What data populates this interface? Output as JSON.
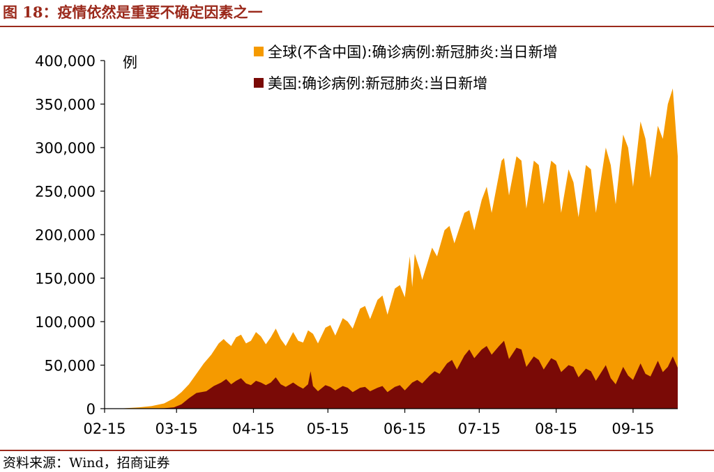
{
  "header": {
    "title": "图 18：疫情依然是重要不确定因素之一"
  },
  "footer": {
    "source": "资料来源：Wind，招商证券"
  },
  "chart_data": {
    "type": "area",
    "title": "图 18：疫情依然是重要不确定因素之一",
    "ylabel": "例",
    "xlabel": "",
    "ylim": [
      0,
      400000
    ],
    "yticks": [
      0,
      50000,
      100000,
      150000,
      200000,
      250000,
      300000,
      350000,
      400000
    ],
    "ytick_labels": [
      "0",
      "50,000",
      "100,000",
      "150,000",
      "200,000",
      "250,000",
      "300,000",
      "350,000",
      "400,000"
    ],
    "x_start": "2020-02-15",
    "x_end": "2020-10-03",
    "xticks": [
      "2020-02-15",
      "2020-03-15",
      "2020-04-15",
      "2020-05-15",
      "2020-06-15",
      "2020-07-15",
      "2020-08-15",
      "2020-09-15"
    ],
    "xtick_labels": [
      "02-15",
      "03-15",
      "04-15",
      "05-15",
      "06-15",
      "07-15",
      "08-15",
      "09-15"
    ],
    "legend_position": "top-center",
    "grid": false,
    "colors": {
      "global": "#f59a00",
      "us": "#7a0a06"
    },
    "series": [
      {
        "name": "全球(不含中国):确诊病例:新冠肺炎:当日新增",
        "key": "global",
        "points": [
          [
            "2020-02-15",
            0
          ],
          [
            "2020-02-22",
            300
          ],
          [
            "2020-02-29",
            1500
          ],
          [
            "2020-03-05",
            3000
          ],
          [
            "2020-03-10",
            6000
          ],
          [
            "2020-03-14",
            12000
          ],
          [
            "2020-03-17",
            19000
          ],
          [
            "2020-03-20",
            28000
          ],
          [
            "2020-03-23",
            40000
          ],
          [
            "2020-03-26",
            52000
          ],
          [
            "2020-03-29",
            62000
          ],
          [
            "2020-04-01",
            75000
          ],
          [
            "2020-04-03",
            80000
          ],
          [
            "2020-04-04",
            77000
          ],
          [
            "2020-04-06",
            72000
          ],
          [
            "2020-04-08",
            82000
          ],
          [
            "2020-04-10",
            85000
          ],
          [
            "2020-04-12",
            75000
          ],
          [
            "2020-04-14",
            78000
          ],
          [
            "2020-04-16",
            88000
          ],
          [
            "2020-04-18",
            83000
          ],
          [
            "2020-04-20",
            74000
          ],
          [
            "2020-04-22",
            82000
          ],
          [
            "2020-04-24",
            92000
          ],
          [
            "2020-04-26",
            80000
          ],
          [
            "2020-04-28",
            72000
          ],
          [
            "2020-05-01",
            88000
          ],
          [
            "2020-05-03",
            78000
          ],
          [
            "2020-05-05",
            76000
          ],
          [
            "2020-05-07",
            90000
          ],
          [
            "2020-05-09",
            86000
          ],
          [
            "2020-05-11",
            75000
          ],
          [
            "2020-05-14",
            93000
          ],
          [
            "2020-05-16",
            96000
          ],
          [
            "2020-05-18",
            84000
          ],
          [
            "2020-05-21",
            104000
          ],
          [
            "2020-05-23",
            100000
          ],
          [
            "2020-05-25",
            92000
          ],
          [
            "2020-05-28",
            115000
          ],
          [
            "2020-05-30",
            118000
          ],
          [
            "2020-06-01",
            103000
          ],
          [
            "2020-06-04",
            125000
          ],
          [
            "2020-06-06",
            130000
          ],
          [
            "2020-06-08",
            108000
          ],
          [
            "2020-06-11",
            138000
          ],
          [
            "2020-06-13",
            142000
          ],
          [
            "2020-06-15",
            128000
          ],
          [
            "2020-06-17",
            175000
          ],
          [
            "2020-06-18",
            140000
          ],
          [
            "2020-06-19",
            178000
          ],
          [
            "2020-06-21",
            160000
          ],
          [
            "2020-06-22",
            148000
          ],
          [
            "2020-06-26",
            185000
          ],
          [
            "2020-06-28",
            175000
          ],
          [
            "2020-07-01",
            205000
          ],
          [
            "2020-07-03",
            210000
          ],
          [
            "2020-07-05",
            190000
          ],
          [
            "2020-07-09",
            225000
          ],
          [
            "2020-07-11",
            228000
          ],
          [
            "2020-07-13",
            205000
          ],
          [
            "2020-07-16",
            240000
          ],
          [
            "2020-07-18",
            255000
          ],
          [
            "2020-07-20",
            225000
          ],
          [
            "2020-07-24",
            285000
          ],
          [
            "2020-07-25",
            288000
          ],
          [
            "2020-07-27",
            245000
          ],
          [
            "2020-07-30",
            290000
          ],
          [
            "2020-08-01",
            285000
          ],
          [
            "2020-08-03",
            230000
          ],
          [
            "2020-08-06",
            285000
          ],
          [
            "2020-08-08",
            280000
          ],
          [
            "2020-08-10",
            235000
          ],
          [
            "2020-08-13",
            285000
          ],
          [
            "2020-08-15",
            280000
          ],
          [
            "2020-08-17",
            225000
          ],
          [
            "2020-08-20",
            275000
          ],
          [
            "2020-08-22",
            260000
          ],
          [
            "2020-08-24",
            220000
          ],
          [
            "2020-08-27",
            280000
          ],
          [
            "2020-08-29",
            275000
          ],
          [
            "2020-08-31",
            225000
          ],
          [
            "2020-09-04",
            300000
          ],
          [
            "2020-09-06",
            280000
          ],
          [
            "2020-09-08",
            235000
          ],
          [
            "2020-09-11",
            315000
          ],
          [
            "2020-09-13",
            300000
          ],
          [
            "2020-09-15",
            255000
          ],
          [
            "2020-09-18",
            330000
          ],
          [
            "2020-09-20",
            310000
          ],
          [
            "2020-09-22",
            265000
          ],
          [
            "2020-09-25",
            325000
          ],
          [
            "2020-09-27",
            310000
          ],
          [
            "2020-09-29",
            350000
          ],
          [
            "2020-10-01",
            368000
          ],
          [
            "2020-10-03",
            290000
          ]
        ]
      },
      {
        "name": "美国:确诊病例:新冠肺炎:当日新增",
        "key": "us",
        "points": [
          [
            "2020-02-15",
            0
          ],
          [
            "2020-03-01",
            100
          ],
          [
            "2020-03-10",
            500
          ],
          [
            "2020-03-14",
            1500
          ],
          [
            "2020-03-17",
            5000
          ],
          [
            "2020-03-20",
            12000
          ],
          [
            "2020-03-23",
            18000
          ],
          [
            "2020-03-27",
            20000
          ],
          [
            "2020-03-30",
            26000
          ],
          [
            "2020-04-02",
            30000
          ],
          [
            "2020-04-04",
            34000
          ],
          [
            "2020-04-06",
            28000
          ],
          [
            "2020-04-08",
            32000
          ],
          [
            "2020-04-10",
            35000
          ],
          [
            "2020-04-12",
            29000
          ],
          [
            "2020-04-14",
            27000
          ],
          [
            "2020-04-16",
            32000
          ],
          [
            "2020-04-18",
            30000
          ],
          [
            "2020-04-20",
            27000
          ],
          [
            "2020-04-22",
            30000
          ],
          [
            "2020-04-24",
            36000
          ],
          [
            "2020-04-26",
            28000
          ],
          [
            "2020-04-28",
            25000
          ],
          [
            "2020-05-01",
            30000
          ],
          [
            "2020-05-03",
            26000
          ],
          [
            "2020-05-05",
            23000
          ],
          [
            "2020-05-07",
            28000
          ],
          [
            "2020-05-08",
            43000
          ],
          [
            "2020-05-09",
            26000
          ],
          [
            "2020-05-11",
            20000
          ],
          [
            "2020-05-14",
            27000
          ],
          [
            "2020-05-16",
            25000
          ],
          [
            "2020-05-18",
            21000
          ],
          [
            "2020-05-21",
            26000
          ],
          [
            "2020-05-23",
            24000
          ],
          [
            "2020-05-25",
            19000
          ],
          [
            "2020-05-28",
            24000
          ],
          [
            "2020-05-30",
            25000
          ],
          [
            "2020-06-01",
            20000
          ],
          [
            "2020-06-04",
            24000
          ],
          [
            "2020-06-06",
            26000
          ],
          [
            "2020-06-08",
            19000
          ],
          [
            "2020-06-11",
            25000
          ],
          [
            "2020-06-13",
            27000
          ],
          [
            "2020-06-15",
            21000
          ],
          [
            "2020-06-18",
            30000
          ],
          [
            "2020-06-20",
            33000
          ],
          [
            "2020-06-22",
            29000
          ],
          [
            "2020-06-25",
            38000
          ],
          [
            "2020-06-27",
            43000
          ],
          [
            "2020-06-29",
            40000
          ],
          [
            "2020-07-02",
            52000
          ],
          [
            "2020-07-04",
            56000
          ],
          [
            "2020-07-06",
            45000
          ],
          [
            "2020-07-09",
            61000
          ],
          [
            "2020-07-11",
            68000
          ],
          [
            "2020-07-13",
            58000
          ],
          [
            "2020-07-16",
            68000
          ],
          [
            "2020-07-18",
            72000
          ],
          [
            "2020-07-20",
            62000
          ],
          [
            "2020-07-23",
            72000
          ],
          [
            "2020-07-25",
            78000
          ],
          [
            "2020-07-27",
            57000
          ],
          [
            "2020-07-30",
            70000
          ],
          [
            "2020-08-01",
            68000
          ],
          [
            "2020-08-03",
            48000
          ],
          [
            "2020-08-06",
            60000
          ],
          [
            "2020-08-08",
            56000
          ],
          [
            "2020-08-10",
            45000
          ],
          [
            "2020-08-13",
            58000
          ],
          [
            "2020-08-15",
            55000
          ],
          [
            "2020-08-17",
            42000
          ],
          [
            "2020-08-20",
            50000
          ],
          [
            "2020-08-22",
            48000
          ],
          [
            "2020-08-24",
            36000
          ],
          [
            "2020-08-27",
            46000
          ],
          [
            "2020-08-29",
            43000
          ],
          [
            "2020-08-31",
            32000
          ],
          [
            "2020-09-04",
            50000
          ],
          [
            "2020-09-06",
            35000
          ],
          [
            "2020-09-08",
            28000
          ],
          [
            "2020-09-11",
            48000
          ],
          [
            "2020-09-13",
            38000
          ],
          [
            "2020-09-15",
            33000
          ],
          [
            "2020-09-18",
            52000
          ],
          [
            "2020-09-20",
            40000
          ],
          [
            "2020-09-22",
            37000
          ],
          [
            "2020-09-25",
            55000
          ],
          [
            "2020-09-27",
            42000
          ],
          [
            "2020-09-29",
            48000
          ],
          [
            "2020-10-01",
            60000
          ],
          [
            "2020-10-03",
            47000
          ]
        ]
      }
    ]
  }
}
